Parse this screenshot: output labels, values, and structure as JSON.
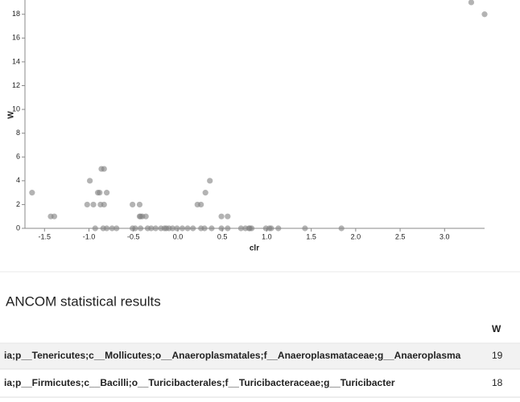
{
  "chart_data": {
    "type": "scatter",
    "x_label": "clr",
    "y_label": "W",
    "x": [
      -1.64,
      -1.43,
      -1.39,
      -1.02,
      -0.99,
      -0.95,
      -0.93,
      -0.9,
      -0.88,
      -0.86,
      -0.83,
      -0.87,
      -0.83,
      -0.8,
      -0.84,
      -0.8,
      -0.74,
      -0.69,
      -0.51,
      -0.43,
      -0.43,
      -0.42,
      -0.4,
      -0.36,
      -0.51,
      -0.48,
      -0.42,
      -0.34,
      -0.3,
      -0.25,
      -0.19,
      -0.15,
      -0.13,
      -0.1,
      -0.06,
      -0.01,
      0.05,
      0.11,
      0.17,
      0.26,
      0.3,
      0.22,
      0.26,
      0.31,
      0.36,
      0.38,
      0.49,
      0.56,
      0.49,
      0.56,
      0.71,
      0.76,
      0.8,
      0.81,
      0.83,
      0.99,
      1.03,
      1.05,
      1.13,
      1.43,
      1.84,
      3.3,
      3.45
    ],
    "values": [
      3,
      1,
      1,
      2,
      4,
      2,
      0,
      3,
      3,
      5,
      5,
      2,
      2,
      3,
      0,
      0,
      0,
      0,
      2,
      2,
      1,
      1,
      1,
      1,
      0,
      0,
      0,
      0,
      0,
      0,
      0,
      0,
      0,
      0,
      0,
      0,
      0,
      0,
      0,
      0,
      0,
      2,
      2,
      3,
      4,
      0,
      1,
      1,
      0,
      0,
      0,
      0,
      0,
      0,
      0,
      0,
      0,
      0,
      0,
      0,
      0,
      19,
      18
    ],
    "color": "#808080",
    "xlim": [
      -1.72,
      3.45
    ],
    "xticks": [
      {
        "value": -1.5,
        "label": "-1.5"
      },
      {
        "value": -1.0,
        "label": "-1.0"
      },
      {
        "value": -0.5,
        "label": "-0.5"
      },
      {
        "value": 0,
        "label": "0.0"
      },
      {
        "value": 0.5,
        "label": "0.5"
      },
      {
        "value": 1,
        "label": "1.0"
      },
      {
        "value": 1.5,
        "label": "1.5"
      },
      {
        "value": 2,
        "label": "2.0"
      },
      {
        "value": 2.5,
        "label": "2.5"
      },
      {
        "value": 3,
        "label": "3.0"
      }
    ],
    "ylim": [
      0,
      19.2
    ],
    "yticks": [
      0,
      2,
      4,
      6,
      8,
      10,
      12,
      14,
      16,
      18
    ]
  },
  "section": {
    "title": "ANCOM statistical results",
    "table": {
      "columns": [
        "W"
      ],
      "rows": [
        [
          "ia;p__Tenericutes;c__Mollicutes;o__Anaeroplasmatales;f__Anaeroplasmataceae;g__Anaeroplasma",
          19
        ],
        [
          "ia;p__Firmicutes;c__Bacilli;o__Turicibacterales;f__Turicibacteraceae;g__Turicibacter",
          18
        ]
      ]
    }
  }
}
